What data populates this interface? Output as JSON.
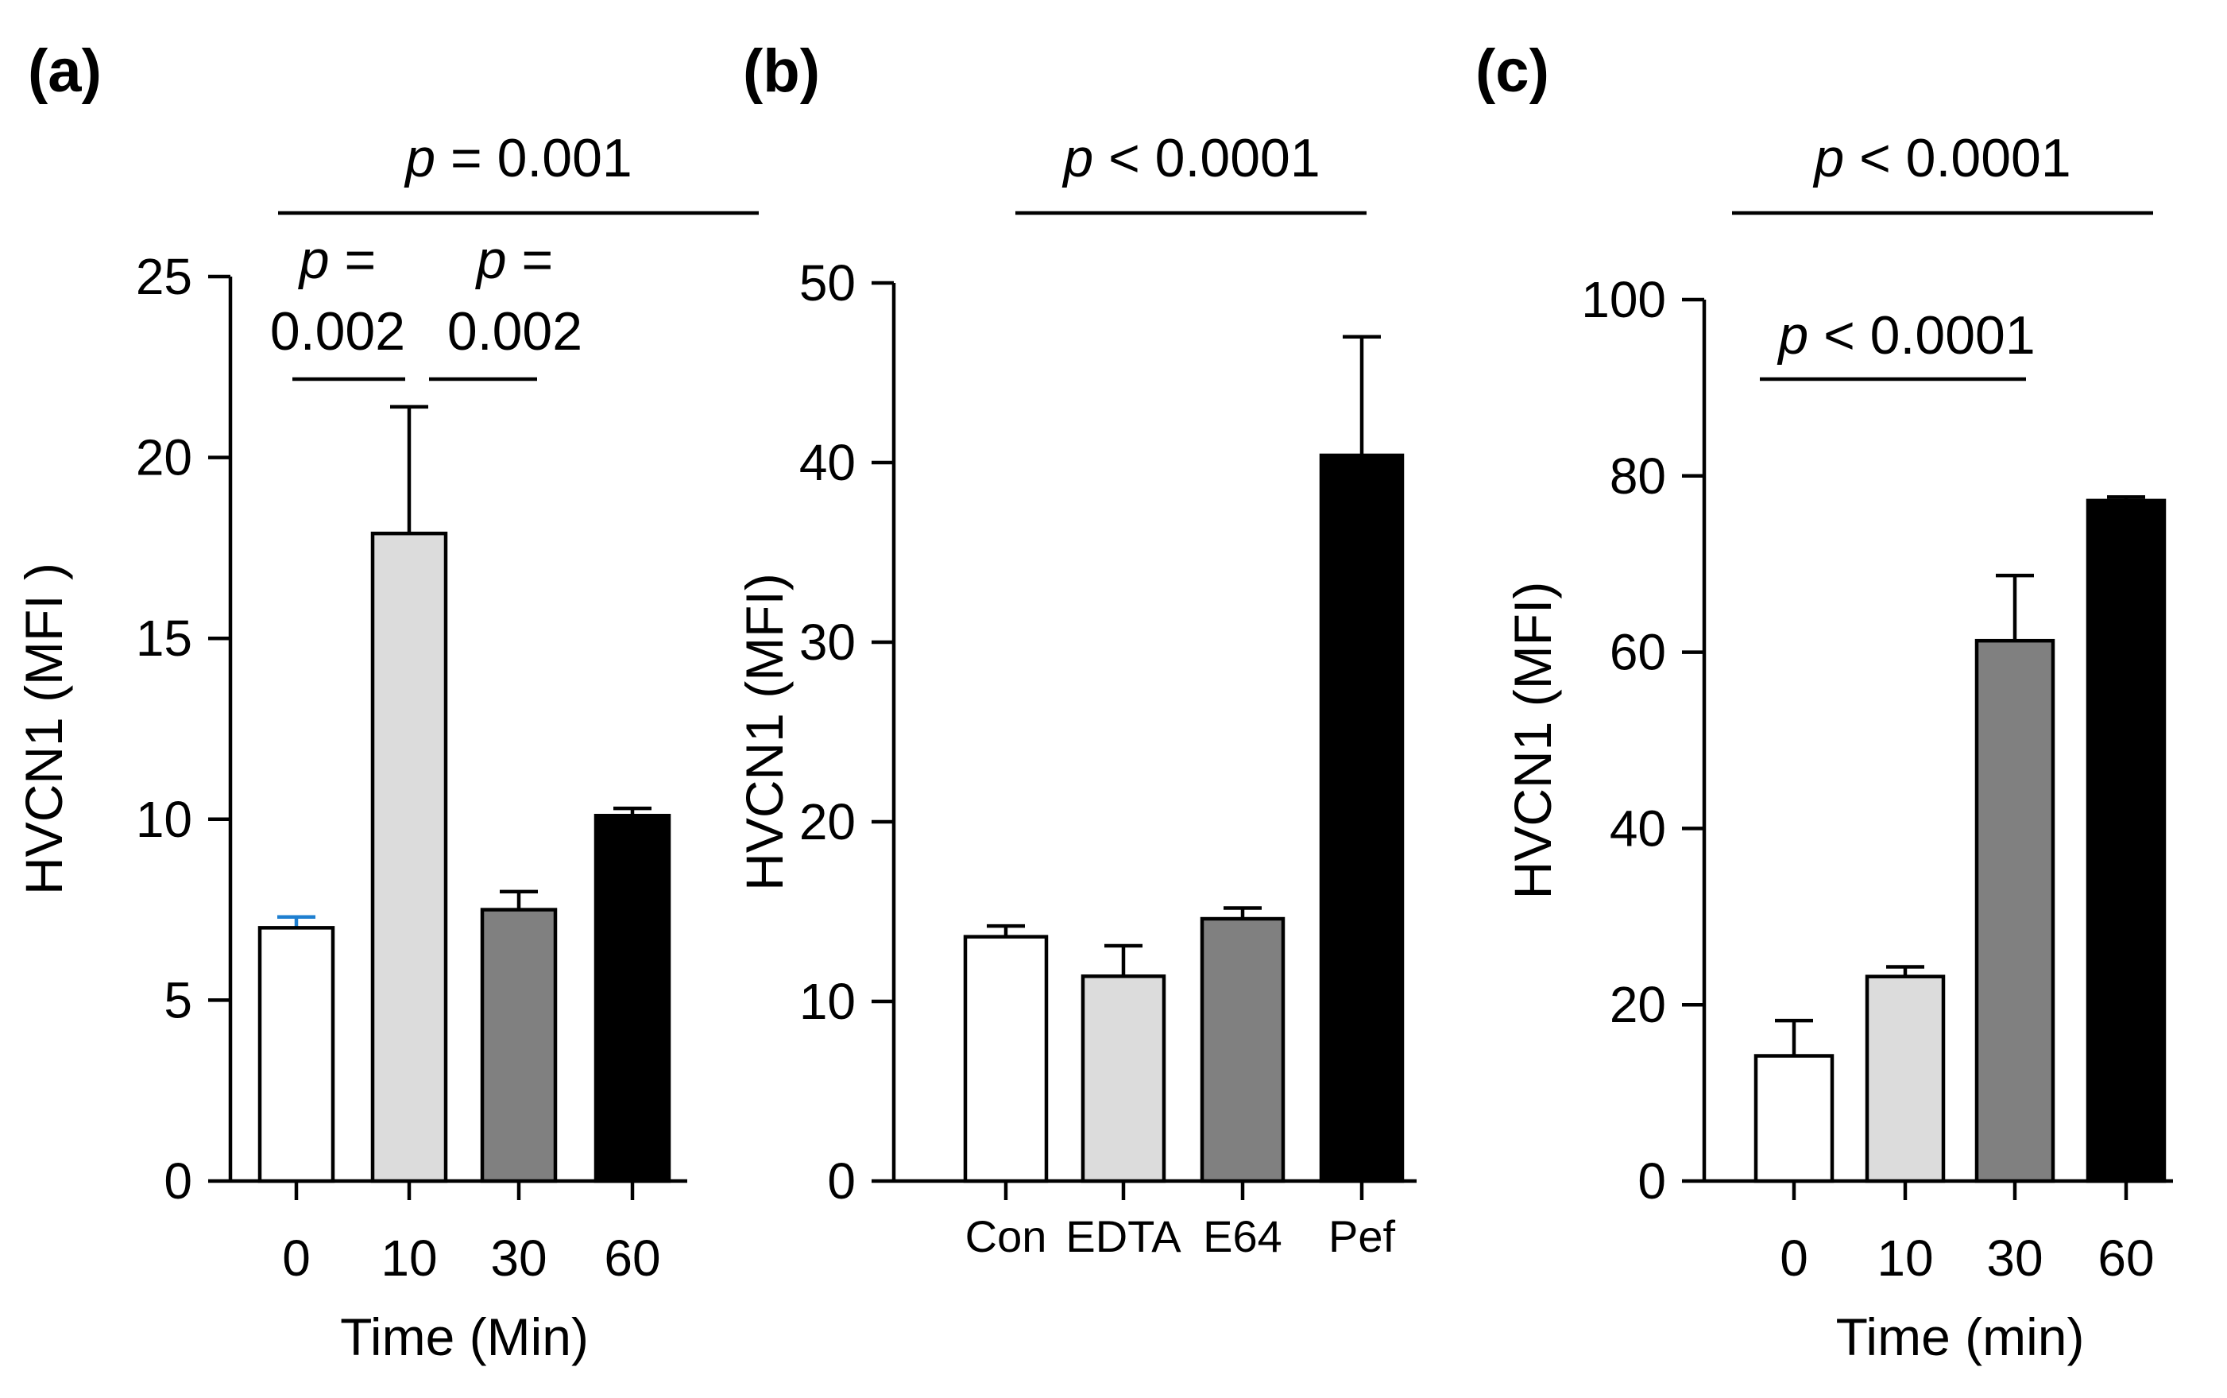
{
  "chart_data": [
    {
      "panel": "(a)",
      "type": "bar",
      "categories": [
        "0",
        "10",
        "30",
        "60"
      ],
      "values": [
        7.0,
        17.9,
        7.5,
        10.1
      ],
      "errors": [
        0.3,
        3.5,
        0.5,
        0.2
      ],
      "bar_colors": [
        "#ffffff",
        "#dcdcdc",
        "#808080",
        "#000000"
      ],
      "error_colors": [
        "#1e7fd0",
        "#000000",
        "#000000",
        "#000000"
      ],
      "xlabel": "Time (Min)",
      "ylabel": "HVCN1 (MFI )",
      "ylim": [
        0,
        25
      ],
      "yticks": [
        "0",
        "5",
        "10",
        "15",
        "20",
        "25"
      ],
      "annotations": [
        {
          "from": 1,
          "to": 3,
          "italic": "p",
          "rest": " = 0.001"
        },
        {
          "from": 0,
          "to": 1,
          "italic": "p",
          "rest": " =",
          "line2": "0.002"
        },
        {
          "from": 1,
          "to": 2,
          "italic": "p",
          "rest": " =",
          "line2": "0.002"
        }
      ]
    },
    {
      "panel": "(b)",
      "type": "bar",
      "categories": [
        "Con",
        "EDTA",
        "E64",
        "Pef"
      ],
      "values": [
        13.6,
        11.4,
        14.6,
        40.4
      ],
      "errors": [
        0.6,
        1.7,
        0.6,
        6.6
      ],
      "bar_colors": [
        "#ffffff",
        "#dcdcdc",
        "#808080",
        "#000000"
      ],
      "error_colors": [
        "#000000",
        "#000000",
        "#000000",
        "#000000"
      ],
      "xlabel": "",
      "ylabel": "HVCN1 (MFI)",
      "ylim": [
        0,
        50
      ],
      "yticks": [
        "0",
        "10",
        "20",
        "30",
        "40",
        "50"
      ],
      "annotations": [
        {
          "from": 0,
          "to": 3,
          "italic": "p",
          "rest": " < 0.0001"
        }
      ]
    },
    {
      "panel": "(c)",
      "type": "bar",
      "categories": [
        "0",
        "10",
        "30",
        "60"
      ],
      "values": [
        14.2,
        23.2,
        61.3,
        77.2
      ],
      "errors": [
        4.0,
        1.1,
        7.4,
        0.4
      ],
      "bar_colors": [
        "#ffffff",
        "#dcdcdc",
        "#808080",
        "#000000"
      ],
      "error_colors": [
        "#000000",
        "#000000",
        "#000000",
        "#000000"
      ],
      "xlabel": "Time (min)",
      "ylabel": "HVCN1 (MFI)",
      "ylim": [
        0,
        100
      ],
      "yticks": [
        "0",
        "20",
        "40",
        "60",
        "80",
        "100"
      ],
      "annotations": [
        {
          "from": 0,
          "to": 3,
          "italic": "p",
          "rest": " < 0.0001"
        },
        {
          "from": 0,
          "to": 2,
          "italic": "p",
          "rest": " < 0.0001"
        }
      ]
    }
  ]
}
